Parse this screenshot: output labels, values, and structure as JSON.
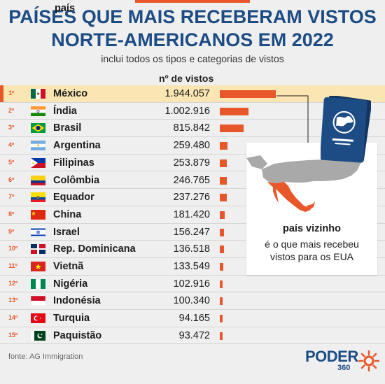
{
  "header": {
    "title_line1": "PAÍSES QUE MAIS RECEBERAM VISTOS",
    "title_line2": "NORTE-AMERICANOS EM 2022",
    "subtitle": "inclui todos os tipos e categorias de vistos",
    "col_country": "país",
    "col_value": "nº de vistos"
  },
  "chart_data": {
    "type": "bar",
    "title": "PAÍSES QUE MAIS RECEBERAM VISTOS NORTE-AMERICANOS EM 2022",
    "subtitle": "inclui todos os tipos e categorias de vistos",
    "categories": [
      "México",
      "Índia",
      "Brasil",
      "Argentina",
      "Filipinas",
      "Colômbia",
      "Equador",
      "China",
      "Israel",
      "Rep. Dominicana",
      "Vietnã",
      "Nigéria",
      "Indonésia",
      "Turquia",
      "Paquistão"
    ],
    "ranks": [
      "1º",
      "2º",
      "3º",
      "4º",
      "5º",
      "6º",
      "7º",
      "8º",
      "9º",
      "10º",
      "11º",
      "12º",
      "13º",
      "14º",
      "15º"
    ],
    "labels": [
      "1.944.057",
      "1.002.916",
      "815.842",
      "259.480",
      "253.879",
      "246.765",
      "237.276",
      "181.420",
      "156.247",
      "136.518",
      "133.549",
      "102.916",
      "100.340",
      "94.165",
      "93.472"
    ],
    "values": [
      1944057,
      1002916,
      815842,
      259480,
      253879,
      246765,
      237276,
      181420,
      156247,
      136518,
      133549,
      102916,
      100340,
      94165,
      93472
    ],
    "flags": [
      "mexico-flag-icon",
      "india-flag-icon",
      "brazil-flag-icon",
      "argentina-flag-icon",
      "philippines-flag-icon",
      "colombia-flag-icon",
      "ecuador-flag-icon",
      "china-flag-icon",
      "israel-flag-icon",
      "dominican-republic-flag-icon",
      "vietnam-flag-icon",
      "nigeria-flag-icon",
      "indonesia-flag-icon",
      "turkey-flag-icon",
      "pakistan-flag-icon"
    ],
    "highlight": "México",
    "bar_color": "#e8572a"
  },
  "callout": {
    "title": "país vizinho",
    "text_line1": "é o que mais recebeu",
    "text_line2": "vistos para os EUA"
  },
  "source": "fonte: AG Immigration",
  "logo": {
    "name": "PODER",
    "number": "360"
  },
  "colors": {
    "accent": "#e8572a",
    "brand": "#1d4c85",
    "highlight_row": "#fbe6b3"
  }
}
